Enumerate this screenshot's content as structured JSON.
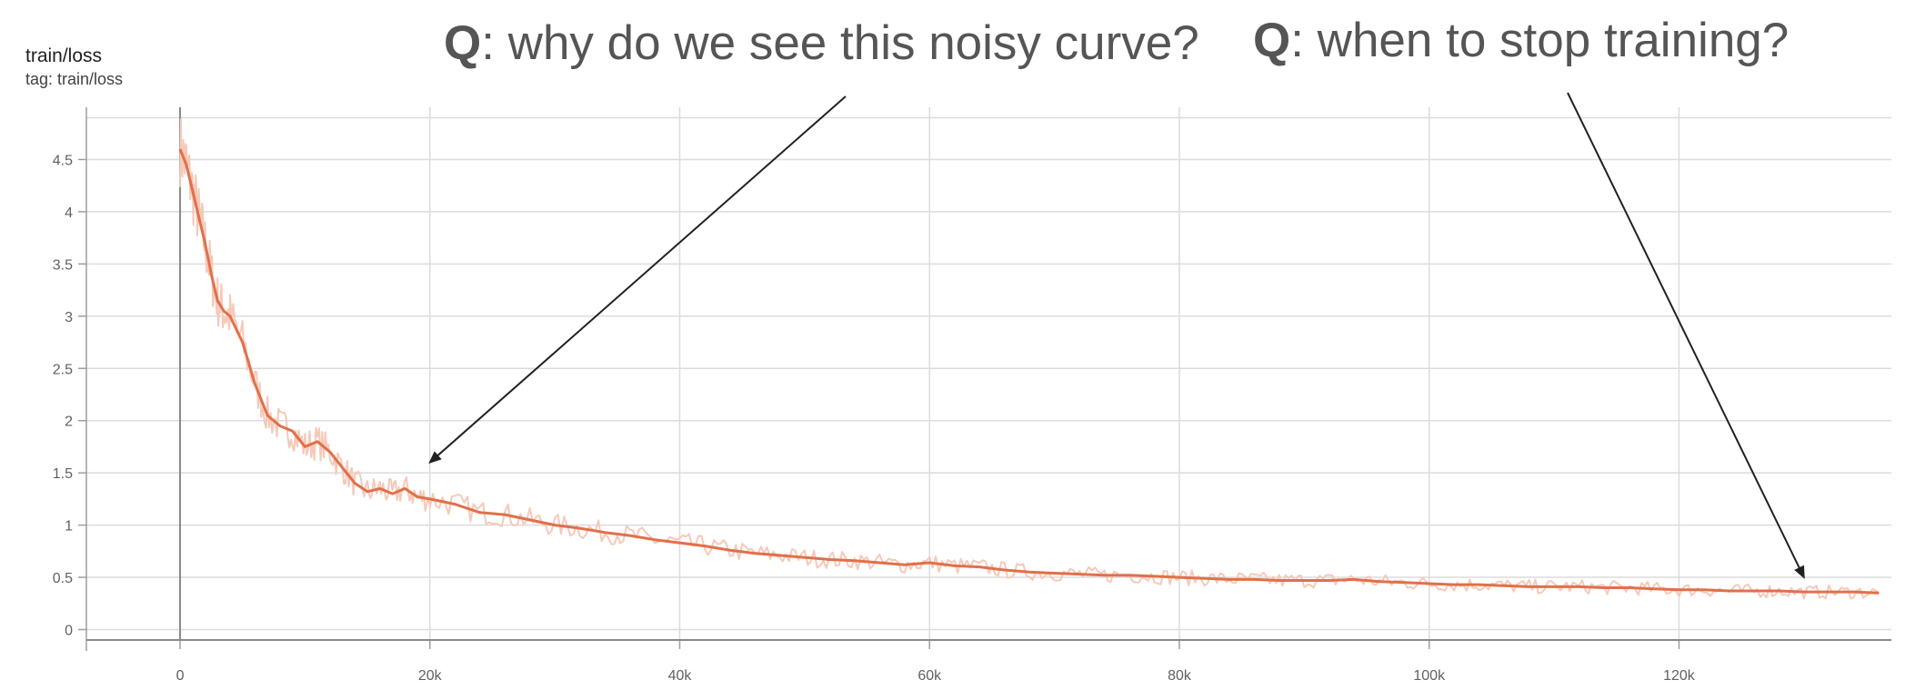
{
  "header": {
    "title": "train/loss",
    "subtitle": "tag: train/loss"
  },
  "annotations": [
    {
      "prefix": "Q",
      "text": ": why do we see this noisy curve?",
      "points_to_step": 20000,
      "points_to_value": 1.6
    },
    {
      "prefix": "Q",
      "text": ": when to stop training?",
      "points_to_step": 130000,
      "points_to_value": 0.5
    }
  ],
  "colors": {
    "smoothed_line": "#e0704a",
    "raw_line": "#f6c9b8",
    "grid": "#dcdcdc",
    "axis": "#9e9e9e",
    "annotation_text": "#555555",
    "arrow": "#212121"
  },
  "chart_data": {
    "type": "line",
    "title": "train/loss",
    "subtitle": "tag: train/loss",
    "xlabel": "",
    "ylabel": "",
    "xlim": [
      -7500,
      137000
    ],
    "ylim": [
      -0.1,
      5.0
    ],
    "x_ticks": [
      0,
      20000,
      40000,
      60000,
      80000,
      100000,
      120000
    ],
    "x_tick_labels": [
      "0",
      "20k",
      "40k",
      "60k",
      "80k",
      "100k",
      "120k"
    ],
    "y_ticks": [
      0,
      0.5,
      1,
      1.5,
      2,
      2.5,
      3,
      3.5,
      4,
      4.5
    ],
    "y_tick_labels": [
      "0",
      "0.5",
      "1",
      "1.5",
      "2",
      "2.5",
      "3",
      "3.5",
      "4",
      "4.5"
    ],
    "grid": true,
    "series": [
      {
        "x": [
          0,
          500,
          1000,
          1500,
          2000,
          2500,
          3000,
          3500,
          4000,
          5000,
          6000,
          7000,
          8000,
          9000,
          10000,
          11000,
          12000,
          13000,
          14000,
          15000,
          16000,
          17000,
          18000,
          19000,
          20000,
          22000,
          24000,
          26000,
          28000,
          30000,
          32000,
          34000,
          36000,
          38000,
          40000,
          42000,
          44000,
          46000,
          48000,
          50000,
          52000,
          54000,
          56000,
          58000,
          60000,
          62000,
          64000,
          66000,
          68000,
          70000,
          72000,
          74000,
          76000,
          78000,
          80000,
          82000,
          84000,
          86000,
          88000,
          90000,
          92000,
          94000,
          96000,
          98000,
          100000,
          102000,
          104000,
          106000,
          108000,
          110000,
          112000,
          114000,
          116000,
          118000,
          120000,
          122000,
          124000,
          126000,
          128000,
          130000,
          132000,
          134000,
          136000
        ],
        "values": [
          4.6,
          4.45,
          4.2,
          3.95,
          3.7,
          3.4,
          3.15,
          3.05,
          3.0,
          2.75,
          2.35,
          2.05,
          1.95,
          1.9,
          1.75,
          1.8,
          1.7,
          1.55,
          1.4,
          1.32,
          1.35,
          1.3,
          1.35,
          1.27,
          1.25,
          1.2,
          1.12,
          1.1,
          1.05,
          1.0,
          0.97,
          0.93,
          0.9,
          0.86,
          0.83,
          0.8,
          0.76,
          0.73,
          0.71,
          0.69,
          0.67,
          0.66,
          0.64,
          0.62,
          0.64,
          0.61,
          0.6,
          0.57,
          0.55,
          0.54,
          0.53,
          0.52,
          0.52,
          0.51,
          0.5,
          0.49,
          0.48,
          0.48,
          0.47,
          0.47,
          0.47,
          0.48,
          0.46,
          0.45,
          0.44,
          0.43,
          0.43,
          0.42,
          0.41,
          0.41,
          0.41,
          0.4,
          0.4,
          0.39,
          0.38,
          0.38,
          0.37,
          0.37,
          0.37,
          0.36,
          0.36,
          0.36,
          0.35
        ]
      }
    ]
  }
}
